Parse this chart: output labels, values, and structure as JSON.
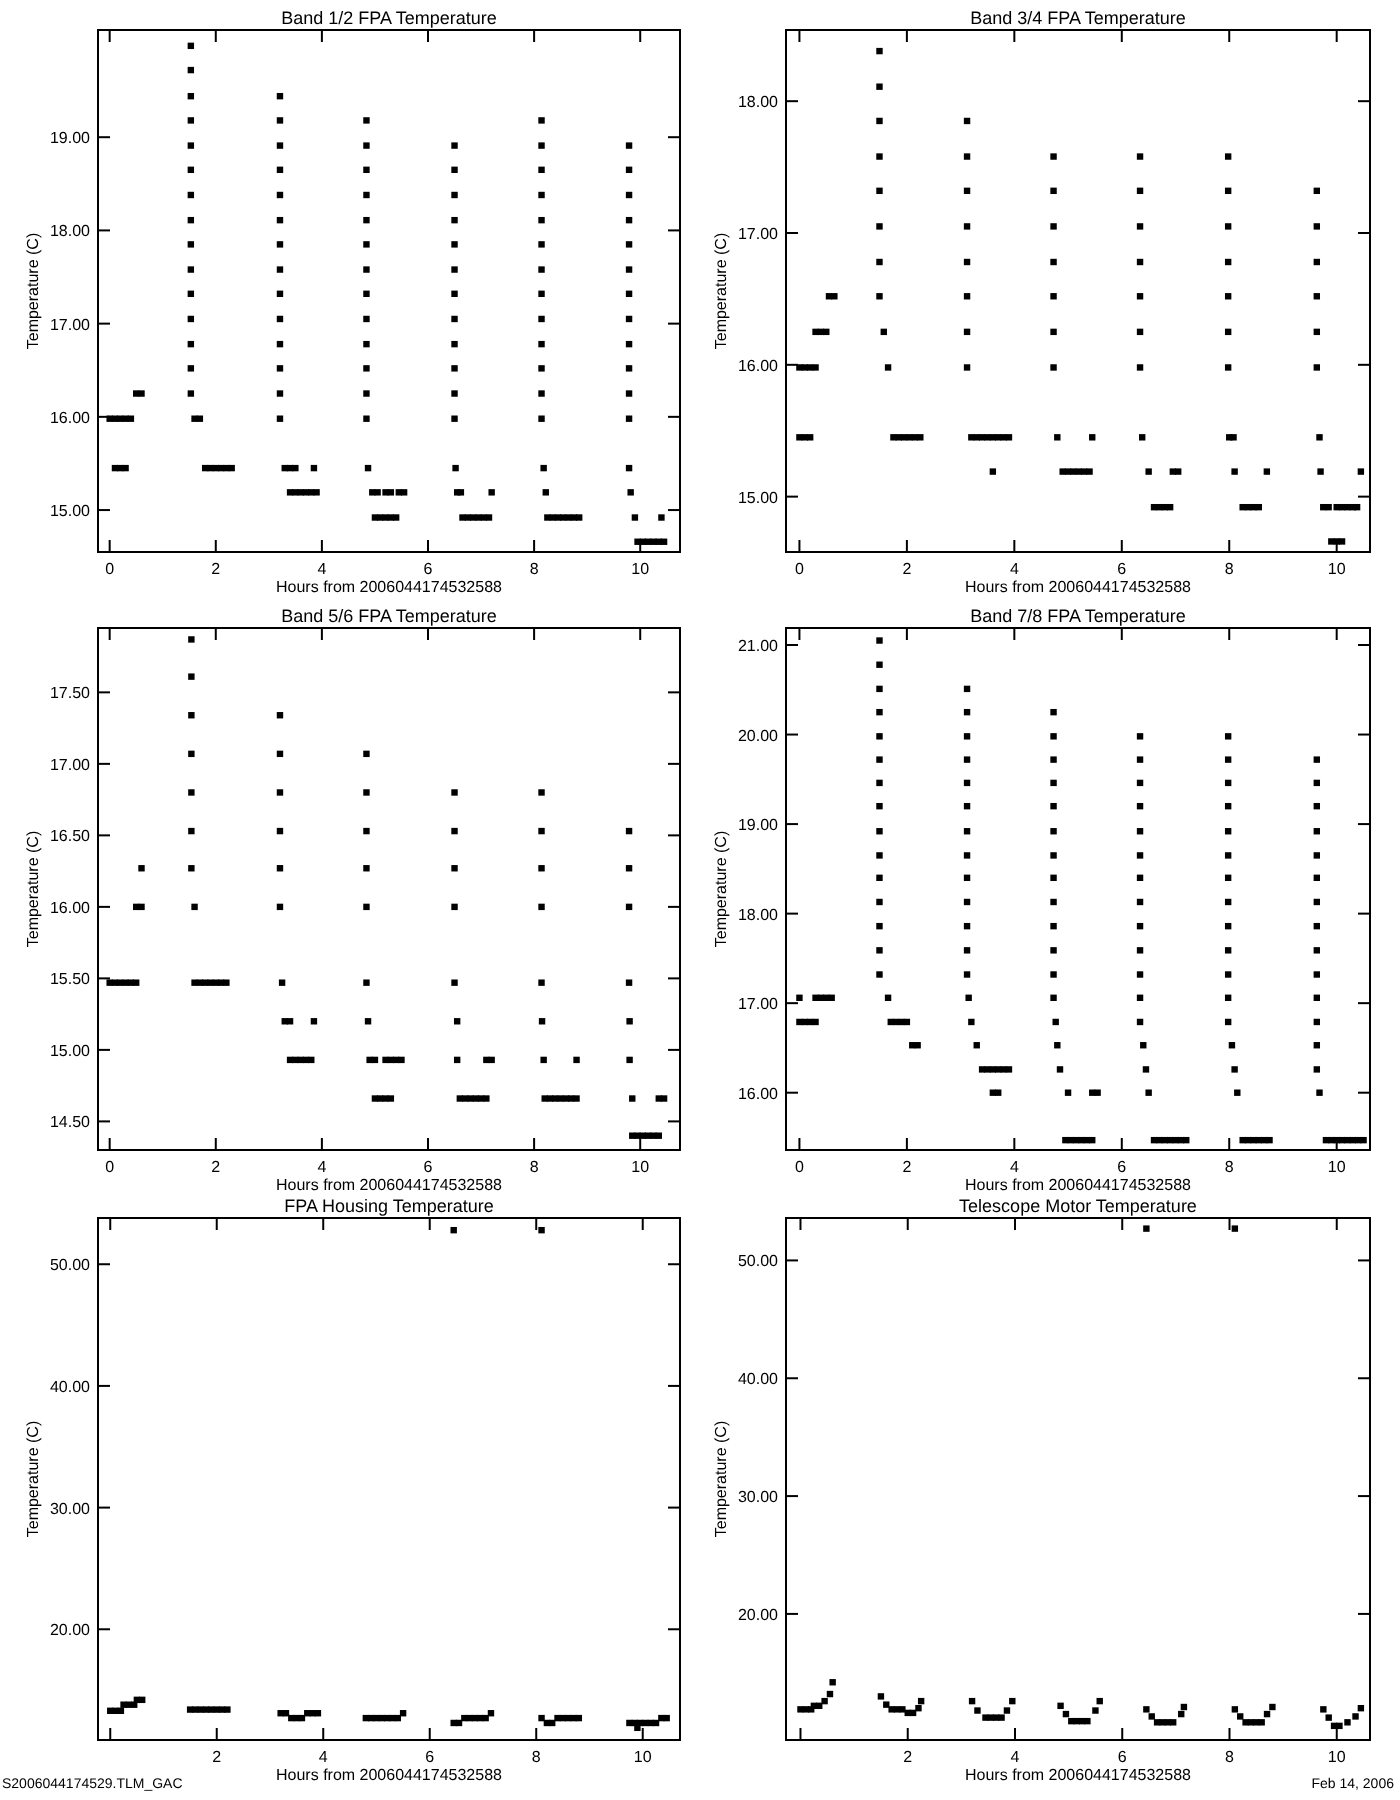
{
  "chart_data": [
    {
      "type": "scatter",
      "title": "Band 1/2 FPA Temperature",
      "xlabel": "Hours from 2006044174532588",
      "ylabel": "Temperature (C)",
      "marker": "square",
      "xlim": [
        -0.22,
        10.75
      ],
      "ylim": [
        14.55,
        20.15
      ],
      "xticks": [
        0,
        2,
        4,
        6,
        8,
        10
      ],
      "yticks": [
        {
          "value": 15,
          "label": "15.00"
        },
        {
          "value": 16,
          "label": "16.00"
        },
        {
          "value": 17,
          "label": "17.00"
        },
        {
          "value": 18,
          "label": "18.00"
        },
        {
          "value": 19,
          "label": "19.00"
        }
      ],
      "series": [
        {
          "color": "#000000",
          "x": [
            0,
            0.1,
            0.2,
            0.3,
            0.4,
            0.1,
            0.2,
            0.3,
            0.5,
            0.6
          ],
          "values": [
            15.98,
            15.98,
            15.98,
            15.98,
            15.98,
            15.45,
            15.45,
            15.45,
            16.25,
            16.25
          ]
        },
        {
          "color": "#000000",
          "x": [
            1.53,
            1.53,
            1.53,
            1.53,
            1.53,
            1.53,
            1.53,
            1.53,
            1.53,
            1.53,
            1.53,
            1.53,
            1.53,
            1.53,
            1.53,
            1.6,
            1.7,
            1.8,
            1.9,
            2.0,
            2.1,
            2.2,
            2.3
          ],
          "values": [
            19.98,
            19.72,
            19.44,
            19.18,
            18.91,
            18.65,
            18.38,
            18.11,
            17.85,
            17.58,
            17.32,
            17.05,
            16.78,
            16.52,
            16.25,
            15.98,
            15.98,
            15.45,
            15.45,
            15.45,
            15.45,
            15.45,
            15.45
          ]
        },
        {
          "color": "#000000",
          "x": [
            3.21,
            3.21,
            3.21,
            3.21,
            3.21,
            3.21,
            3.21,
            3.21,
            3.21,
            3.21,
            3.21,
            3.21,
            3.21,
            3.21,
            3.3,
            3.4,
            3.5,
            3.85,
            3.4,
            3.5,
            3.6,
            3.7,
            3.8,
            3.9
          ],
          "values": [
            19.44,
            19.18,
            18.91,
            18.65,
            18.38,
            18.11,
            17.85,
            17.58,
            17.32,
            17.05,
            16.78,
            16.52,
            16.25,
            15.98,
            15.45,
            15.45,
            15.45,
            15.45,
            15.19,
            15.19,
            15.19,
            15.19,
            15.19,
            15.19
          ]
        },
        {
          "color": "#000000",
          "x": [
            4.84,
            4.84,
            4.84,
            4.84,
            4.84,
            4.84,
            4.84,
            4.84,
            4.84,
            4.84,
            4.84,
            4.84,
            4.84,
            4.87,
            4.95,
            5.05,
            5.2,
            5.3,
            5.45,
            5.55,
            5.0,
            5.1,
            5.2,
            5.3,
            5.4
          ],
          "values": [
            19.18,
            18.91,
            18.65,
            18.38,
            18.11,
            17.85,
            17.58,
            17.32,
            17.05,
            16.78,
            16.52,
            16.25,
            15.98,
            15.45,
            15.19,
            15.19,
            15.19,
            15.19,
            15.19,
            15.19,
            14.92,
            14.92,
            14.92,
            14.92,
            14.92
          ]
        },
        {
          "color": "#000000",
          "x": [
            6.5,
            6.5,
            6.5,
            6.5,
            6.5,
            6.5,
            6.5,
            6.5,
            6.5,
            6.5,
            6.5,
            6.5,
            6.52,
            6.55,
            6.62,
            7.2,
            6.65,
            6.75,
            6.85,
            6.95,
            7.05,
            7.15
          ],
          "values": [
            18.91,
            18.65,
            18.38,
            18.11,
            17.85,
            17.58,
            17.32,
            17.05,
            16.78,
            16.52,
            16.25,
            15.98,
            15.45,
            15.19,
            15.19,
            15.19,
            14.92,
            14.92,
            14.92,
            14.92,
            14.92,
            14.92
          ]
        },
        {
          "color": "#000000",
          "x": [
            8.14,
            8.14,
            8.14,
            8.14,
            8.14,
            8.14,
            8.14,
            8.14,
            8.14,
            8.14,
            8.14,
            8.14,
            8.14,
            8.18,
            8.22,
            8.25,
            8.35,
            8.45,
            8.55,
            8.65,
            8.75,
            8.85
          ],
          "values": [
            19.18,
            18.91,
            18.65,
            18.38,
            18.11,
            17.85,
            17.58,
            17.32,
            17.05,
            16.78,
            16.52,
            16.25,
            15.98,
            15.45,
            15.19,
            14.92,
            14.92,
            14.92,
            14.92,
            14.92,
            14.92,
            14.92
          ]
        },
        {
          "color": "#000000",
          "x": [
            9.79,
            9.79,
            9.79,
            9.79,
            9.79,
            9.79,
            9.79,
            9.79,
            9.79,
            9.79,
            9.79,
            9.79,
            9.79,
            9.82,
            9.9,
            10.4,
            9.95,
            10.05,
            10.15,
            10.25,
            10.35,
            10.45
          ],
          "values": [
            18.91,
            18.65,
            18.38,
            18.11,
            17.85,
            17.58,
            17.32,
            17.05,
            16.78,
            16.52,
            16.25,
            15.98,
            15.45,
            15.19,
            14.92,
            14.92,
            14.66,
            14.66,
            14.66,
            14.66,
            14.66,
            14.66
          ]
        }
      ]
    },
    {
      "type": "scatter",
      "title": "Band 3/4 FPA Temperature",
      "xlabel": "Hours from 2006044174532588",
      "ylabel": "Temperature (C)",
      "marker": "square",
      "xlim": [
        -0.25,
        10.62
      ],
      "ylim": [
        14.58,
        18.54
      ],
      "xticks": [
        0,
        2,
        4,
        6,
        8,
        10
      ],
      "yticks": [
        {
          "value": 15,
          "label": "15.00"
        },
        {
          "value": 16,
          "label": "16.00"
        },
        {
          "value": 17,
          "label": "17.00"
        },
        {
          "value": 18,
          "label": "18.00"
        }
      ],
      "series": [
        {
          "color": "#000000",
          "x": [
            0,
            0.1,
            0.2,
            0.3,
            0,
            0.1,
            0.2,
            0.3,
            0.4,
            0.5,
            0.55,
            0.65
          ],
          "values": [
            15.98,
            15.98,
            15.98,
            15.98,
            15.45,
            15.45,
            15.45,
            16.25,
            16.25,
            16.25,
            16.52,
            16.52
          ]
        },
        {
          "color": "#000000",
          "x": [
            1.49,
            1.49,
            1.49,
            1.49,
            1.49,
            1.49,
            1.49,
            1.49,
            1.57,
            1.65,
            1.75,
            1.85,
            1.95,
            2.05,
            2.15,
            2.25
          ],
          "values": [
            18.38,
            18.11,
            17.85,
            17.58,
            17.32,
            17.05,
            16.78,
            16.52,
            16.25,
            15.98,
            15.45,
            15.45,
            15.45,
            15.45,
            15.45,
            15.45
          ]
        },
        {
          "color": "#000000",
          "x": [
            3.12,
            3.12,
            3.12,
            3.12,
            3.12,
            3.12,
            3.12,
            3.12,
            3.2,
            3.3,
            3.4,
            3.5,
            3.6,
            3.7,
            3.8,
            3.9,
            3.6
          ],
          "values": [
            17.85,
            17.58,
            17.32,
            17.05,
            16.78,
            16.52,
            16.25,
            15.98,
            15.45,
            15.45,
            15.45,
            15.45,
            15.45,
            15.45,
            15.45,
            15.45,
            15.19
          ]
        },
        {
          "color": "#000000",
          "x": [
            4.73,
            4.73,
            4.73,
            4.73,
            4.73,
            4.73,
            4.73,
            4.8,
            5.45,
            4.9,
            5.0,
            5.1,
            5.2,
            5.3,
            5.4
          ],
          "values": [
            17.58,
            17.32,
            17.05,
            16.78,
            16.52,
            16.25,
            15.98,
            15.45,
            15.45,
            15.19,
            15.19,
            15.19,
            15.19,
            15.19,
            15.19
          ]
        },
        {
          "color": "#000000",
          "x": [
            6.34,
            6.34,
            6.34,
            6.34,
            6.34,
            6.34,
            6.34,
            6.38,
            6.5,
            6.95,
            7.05,
            6.6,
            6.7,
            6.8,
            6.9
          ],
          "values": [
            17.58,
            17.32,
            17.05,
            16.78,
            16.52,
            16.25,
            15.98,
            15.45,
            15.19,
            15.19,
            15.19,
            14.92,
            14.92,
            14.92,
            14.92
          ]
        },
        {
          "color": "#000000",
          "x": [
            7.98,
            7.98,
            7.98,
            7.98,
            7.98,
            7.98,
            7.98,
            8.0,
            8.08,
            8.1,
            8.7,
            8.25,
            8.35,
            8.45,
            8.55
          ],
          "values": [
            17.58,
            17.32,
            17.05,
            16.78,
            16.52,
            16.25,
            15.98,
            15.45,
            15.45,
            15.19,
            15.19,
            14.92,
            14.92,
            14.92,
            14.92
          ]
        },
        {
          "color": "#000000",
          "x": [
            9.63,
            9.63,
            9.63,
            9.63,
            9.63,
            9.63,
            9.68,
            9.7,
            9.75,
            9.85,
            10.0,
            10.1,
            10.2,
            10.3,
            10.38,
            10.45,
            9.9,
            10.0,
            10.1
          ],
          "values": [
            17.32,
            17.05,
            16.78,
            16.52,
            16.25,
            15.98,
            15.45,
            15.19,
            14.92,
            14.92,
            14.92,
            14.92,
            14.92,
            14.92,
            14.92,
            15.19,
            14.66,
            14.66,
            14.66
          ]
        }
      ]
    },
    {
      "type": "scatter",
      "title": "Band 5/6 FPA Temperature",
      "xlabel": "Hours from 2006044174532588",
      "ylabel": "Temperature (C)",
      "marker": "square",
      "xlim": [
        -0.22,
        10.75
      ],
      "ylim": [
        14.3,
        17.95
      ],
      "xticks": [
        0,
        2,
        4,
        6,
        8,
        10
      ],
      "yticks": [
        {
          "value": 14.5,
          "label": "14.50"
        },
        {
          "value": 15,
          "label": "15.00"
        },
        {
          "value": 15.5,
          "label": "15.50"
        },
        {
          "value": 16,
          "label": "16.00"
        },
        {
          "value": 16.5,
          "label": "16.50"
        },
        {
          "value": 17,
          "label": "17.00"
        },
        {
          "value": 17.5,
          "label": "17.50"
        }
      ],
      "series": [
        {
          "color": "#000000",
          "x": [
            0,
            0.1,
            0.2,
            0.3,
            0.4,
            0.5,
            0.5,
            0.6,
            0.6
          ],
          "values": [
            15.47,
            15.47,
            15.47,
            15.47,
            15.47,
            15.47,
            16.0,
            16.0,
            16.27
          ]
        },
        {
          "color": "#000000",
          "x": [
            1.54,
            1.54,
            1.54,
            1.54,
            1.54,
            1.54,
            1.54,
            1.6,
            1.6,
            1.7,
            1.8,
            1.9,
            2.0,
            2.1,
            2.2
          ],
          "values": [
            17.87,
            17.61,
            17.34,
            17.07,
            16.8,
            16.53,
            16.27,
            16.0,
            15.47,
            15.47,
            15.47,
            15.47,
            15.47,
            15.47,
            15.47
          ]
        },
        {
          "color": "#000000",
          "x": [
            3.21,
            3.21,
            3.21,
            3.21,
            3.21,
            3.21,
            3.25,
            3.3,
            3.4,
            3.85,
            3.4,
            3.5,
            3.6,
            3.7,
            3.8
          ],
          "values": [
            17.34,
            17.07,
            16.8,
            16.53,
            16.27,
            16.0,
            15.47,
            15.2,
            15.2,
            15.2,
            14.93,
            14.93,
            14.93,
            14.93,
            14.93
          ]
        },
        {
          "color": "#000000",
          "x": [
            4.84,
            4.84,
            4.84,
            4.84,
            4.84,
            4.84,
            4.87,
            4.9,
            5.0,
            5.2,
            5.3,
            5.4,
            5.5,
            5.0,
            5.1,
            5.2,
            5.3
          ],
          "values": [
            17.07,
            16.8,
            16.53,
            16.27,
            16.0,
            15.47,
            15.2,
            14.93,
            14.93,
            14.93,
            14.93,
            14.93,
            14.93,
            14.66,
            14.66,
            14.66,
            14.66
          ]
        },
        {
          "color": "#000000",
          "x": [
            6.5,
            6.5,
            6.5,
            6.5,
            6.5,
            6.55,
            6.55,
            7.1,
            7.2,
            6.6,
            6.7,
            6.8,
            6.9,
            7.0,
            7.1
          ],
          "values": [
            16.8,
            16.53,
            16.27,
            16.0,
            15.47,
            15.2,
            14.93,
            14.93,
            14.93,
            14.66,
            14.66,
            14.66,
            14.66,
            14.66,
            14.66
          ]
        },
        {
          "color": "#000000",
          "x": [
            8.14,
            8.14,
            8.14,
            8.14,
            8.14,
            8.15,
            8.18,
            8.8,
            8.2,
            8.3,
            8.4,
            8.5,
            8.6,
            8.7,
            8.8
          ],
          "values": [
            16.8,
            16.53,
            16.27,
            16.0,
            15.47,
            15.2,
            14.93,
            14.93,
            14.66,
            14.66,
            14.66,
            14.66,
            14.66,
            14.66,
            14.66
          ]
        },
        {
          "color": "#000000",
          "x": [
            9.79,
            9.79,
            9.79,
            9.79,
            9.8,
            9.8,
            9.85,
            10.35,
            10.45,
            9.85,
            9.95,
            10.05,
            10.15,
            10.25,
            10.35
          ],
          "values": [
            16.53,
            16.27,
            16.0,
            15.47,
            15.2,
            14.93,
            14.66,
            14.66,
            14.66,
            14.4,
            14.4,
            14.4,
            14.4,
            14.4,
            14.4
          ]
        }
      ]
    },
    {
      "type": "scatter",
      "title": "Band 7/8 FPA Temperature",
      "xlabel": "Hours from 2006044174532588",
      "ylabel": "Temperature (C)",
      "marker": "square",
      "xlim": [
        -0.25,
        10.62
      ],
      "ylim": [
        15.36,
        21.19
      ],
      "xticks": [
        0,
        2,
        4,
        6,
        8,
        10
      ],
      "yticks": [
        {
          "value": 16,
          "label": "16.00"
        },
        {
          "value": 17,
          "label": "17.00"
        },
        {
          "value": 18,
          "label": "18.00"
        },
        {
          "value": 19,
          "label": "19.00"
        },
        {
          "value": 20,
          "label": "20.00"
        },
        {
          "value": 21,
          "label": "21.00"
        }
      ],
      "series": [
        {
          "color": "#000000",
          "x": [
            0,
            0.3,
            0.4,
            0.5,
            0.6,
            0,
            0.1,
            0.2,
            0.3
          ],
          "values": [
            17.06,
            17.06,
            17.06,
            17.06,
            17.06,
            16.79,
            16.79,
            16.79,
            16.79
          ]
        },
        {
          "color": "#000000",
          "x": [
            1.49,
            1.49,
            1.49,
            1.49,
            1.49,
            1.49,
            1.49,
            1.49,
            1.49,
            1.49,
            1.49,
            1.49,
            1.49,
            1.49,
            1.49,
            1.65,
            1.7,
            1.8,
            1.9,
            2.0,
            2.1,
            2.2
          ],
          "values": [
            21.05,
            20.78,
            20.51,
            20.25,
            19.98,
            19.72,
            19.46,
            19.2,
            18.92,
            18.65,
            18.4,
            18.13,
            17.86,
            17.59,
            17.32,
            17.06,
            16.79,
            16.79,
            16.79,
            16.79,
            16.53,
            16.53
          ]
        },
        {
          "color": "#000000",
          "x": [
            3.12,
            3.12,
            3.12,
            3.12,
            3.12,
            3.12,
            3.12,
            3.12,
            3.12,
            3.12,
            3.12,
            3.12,
            3.12,
            3.15,
            3.2,
            3.3,
            3.4,
            3.5,
            3.6,
            3.7,
            3.8,
            3.9,
            3.6,
            3.7
          ],
          "values": [
            20.51,
            20.25,
            19.98,
            19.72,
            19.46,
            19.2,
            18.92,
            18.65,
            18.4,
            18.13,
            17.86,
            17.59,
            17.32,
            17.06,
            16.79,
            16.53,
            16.26,
            16.26,
            16.26,
            16.26,
            16.26,
            16.26,
            16.0,
            16.0
          ]
        },
        {
          "color": "#000000",
          "x": [
            4.73,
            4.73,
            4.73,
            4.73,
            4.73,
            4.73,
            4.73,
            4.73,
            4.73,
            4.73,
            4.73,
            4.73,
            4.73,
            4.77,
            4.8,
            4.85,
            5.0,
            5.45,
            5.55,
            4.95,
            5.05,
            5.15,
            5.25,
            5.35,
            5.45
          ],
          "values": [
            20.25,
            19.98,
            19.72,
            19.46,
            19.2,
            18.92,
            18.65,
            18.4,
            18.13,
            17.86,
            17.59,
            17.32,
            17.06,
            16.79,
            16.53,
            16.26,
            16.0,
            16.0,
            16.0,
            15.47,
            15.47,
            15.47,
            15.47,
            15.47,
            15.47
          ]
        },
        {
          "color": "#000000",
          "x": [
            6.34,
            6.34,
            6.34,
            6.34,
            6.34,
            6.34,
            6.34,
            6.34,
            6.34,
            6.34,
            6.34,
            6.34,
            6.34,
            6.4,
            6.45,
            6.5,
            6.6,
            6.7,
            6.8,
            6.9,
            7.0,
            7.1,
            7.2
          ],
          "values": [
            19.98,
            19.72,
            19.46,
            19.2,
            18.92,
            18.65,
            18.4,
            18.13,
            17.86,
            17.59,
            17.32,
            17.06,
            16.79,
            16.53,
            16.26,
            16.0,
            15.47,
            15.47,
            15.47,
            15.47,
            15.47,
            15.47,
            15.47
          ]
        },
        {
          "color": "#000000",
          "x": [
            7.98,
            7.98,
            7.98,
            7.98,
            7.98,
            7.98,
            7.98,
            7.98,
            7.98,
            7.98,
            7.98,
            7.98,
            7.98,
            8.05,
            8.1,
            8.15,
            8.25,
            8.35,
            8.45,
            8.55,
            8.65,
            8.75
          ],
          "values": [
            19.98,
            19.72,
            19.46,
            19.2,
            18.92,
            18.65,
            18.4,
            18.13,
            17.86,
            17.59,
            17.32,
            17.06,
            16.79,
            16.53,
            16.26,
            16.0,
            15.47,
            15.47,
            15.47,
            15.47,
            15.47,
            15.47
          ]
        },
        {
          "color": "#000000",
          "x": [
            9.63,
            9.63,
            9.63,
            9.63,
            9.63,
            9.63,
            9.63,
            9.63,
            9.63,
            9.63,
            9.63,
            9.63,
            9.63,
            9.63,
            9.68,
            9.8,
            9.9,
            10.0,
            10.1,
            10.2,
            10.3,
            10.4,
            10.5
          ],
          "values": [
            19.72,
            19.46,
            19.2,
            18.92,
            18.65,
            18.4,
            18.13,
            17.86,
            17.59,
            17.32,
            17.06,
            16.79,
            16.53,
            16.26,
            16.0,
            15.47,
            15.47,
            15.47,
            15.47,
            15.47,
            15.47,
            15.47,
            15.47
          ]
        }
      ]
    },
    {
      "type": "scatter",
      "title": "FPA Housing Temperature",
      "xlabel": "Hours from 2006044174532588",
      "ylabel": "Temperature (C)",
      "marker": "square",
      "xlim": [
        -0.23,
        10.7
      ],
      "ylim": [
        10.9,
        53.8
      ],
      "xticks": [
        {
          "value": 0,
          "label": null
        },
        2,
        4,
        6,
        8,
        10
      ],
      "yticks": [
        {
          "value": 20,
          "label": "20.00"
        },
        {
          "value": 30,
          "label": "30.00"
        },
        {
          "value": 40,
          "label": "40.00"
        },
        {
          "value": 50,
          "label": "50.00"
        }
      ],
      "annotations": [
        "S2006044174529.TLM_GAC"
      ],
      "series": [
        {
          "color": "#000000",
          "x": [
            0,
            0.1,
            0.2,
            0.25,
            0.35,
            0.45,
            0.5,
            0.6,
            1.5,
            1.6,
            1.7,
            1.8,
            1.9,
            2.0,
            2.1,
            2.2,
            3.2,
            3.3,
            3.4,
            3.5,
            3.6,
            3.7,
            3.8,
            3.9,
            4.8,
            4.9,
            5.0,
            5.1,
            5.2,
            5.3,
            5.4,
            5.5,
            6.45,
            6.55,
            6.65,
            6.75,
            6.85,
            6.95,
            7.05,
            7.15,
            8.1,
            8.2,
            8.3,
            8.4,
            8.5,
            8.6,
            8.7,
            8.8,
            9.75,
            9.85,
            9.95,
            9.9,
            10.05,
            10.15,
            10.25,
            10.35,
            10.45
          ],
          "values": [
            13.3,
            13.3,
            13.3,
            13.8,
            13.8,
            13.8,
            14.2,
            14.2,
            13.4,
            13.4,
            13.4,
            13.4,
            13.4,
            13.4,
            13.4,
            13.4,
            13.1,
            13.1,
            12.7,
            12.7,
            12.7,
            13.1,
            13.1,
            13.1,
            12.7,
            12.7,
            12.7,
            12.7,
            12.7,
            12.7,
            12.7,
            13.1,
            12.3,
            12.3,
            12.7,
            12.7,
            12.7,
            12.7,
            12.7,
            13.1,
            12.7,
            12.3,
            12.3,
            12.7,
            12.7,
            12.7,
            12.7,
            12.7,
            12.3,
            12.3,
            12.3,
            11.9,
            12.3,
            12.3,
            12.3,
            12.7,
            12.7
          ]
        },
        {
          "color": "#000000",
          "x": [
            6.45,
            8.1
          ],
          "values": [
            52.8,
            52.8
          ]
        }
      ]
    },
    {
      "type": "scatter",
      "title": "Telescope Motor Temperature",
      "xlabel": "Hours from 2006044174532588",
      "ylabel": "Temperature (C)",
      "marker": "square",
      "xlim": [
        -0.27,
        10.62
      ],
      "ylim": [
        9.3,
        53.6
      ],
      "xticks": [
        {
          "value": 0,
          "label": null
        },
        2,
        4,
        6,
        8,
        10
      ],
      "yticks": [
        {
          "value": 20,
          "label": "20.00"
        },
        {
          "value": 30,
          "label": "30.00"
        },
        {
          "value": 40,
          "label": "40.00"
        },
        {
          "value": 50,
          "label": "50.00"
        }
      ],
      "annotations": [
        "Feb 14, 2006"
      ],
      "series": [
        {
          "color": "#000000",
          "x": [
            0,
            0.1,
            0.2,
            0.25,
            0.35,
            0.45,
            0.55,
            0.6,
            1.5,
            1.6,
            1.7,
            1.8,
            1.9,
            2.0,
            2.1,
            2.2,
            2.25,
            3.2,
            3.3,
            3.45,
            3.55,
            3.65,
            3.75,
            3.85,
            3.95,
            4.85,
            4.95,
            5.05,
            5.15,
            5.25,
            5.35,
            5.5,
            5.58,
            6.45,
            6.55,
            6.65,
            6.75,
            6.85,
            6.95,
            7.1,
            7.15,
            8.1,
            8.2,
            8.3,
            8.4,
            8.5,
            8.6,
            8.7,
            8.8,
            9.75,
            9.85,
            9.95,
            10.05,
            10.2,
            10.35,
            10.45
          ],
          "values": [
            11.9,
            11.9,
            11.9,
            12.2,
            12.2,
            12.6,
            13.2,
            14.2,
            13.0,
            12.3,
            11.9,
            11.9,
            11.9,
            11.6,
            11.6,
            12.0,
            12.6,
            12.6,
            11.8,
            11.2,
            11.2,
            11.2,
            11.2,
            11.8,
            12.6,
            12.2,
            11.5,
            10.9,
            10.9,
            10.9,
            10.9,
            11.8,
            12.6,
            11.9,
            11.3,
            10.8,
            10.8,
            10.8,
            10.8,
            11.5,
            12.1,
            11.9,
            11.3,
            10.8,
            10.8,
            10.8,
            10.8,
            11.5,
            12.1,
            11.9,
            11.2,
            10.5,
            10.5,
            10.8,
            11.3,
            12.0
          ]
        },
        {
          "color": "#000000",
          "x": [
            6.45,
            8.1
          ],
          "values": [
            52.7,
            52.7
          ]
        }
      ]
    }
  ]
}
